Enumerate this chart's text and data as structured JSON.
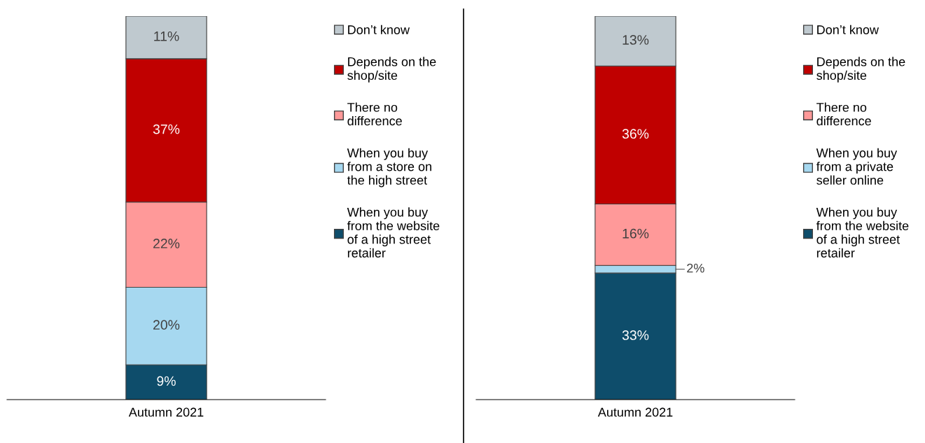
{
  "chart_data": [
    {
      "type": "bar",
      "stacked": true,
      "categories": [
        "Autumn 2021"
      ],
      "legend": "right",
      "series": [
        {
          "name": "When you buy from the website of a high street retailer",
          "color": "#0e4d6b",
          "values": [
            9
          ],
          "value_labels": [
            "9%"
          ]
        },
        {
          "name": "When you buy from a store on the high street",
          "color": "#a6d8f0",
          "values": [
            20
          ],
          "value_labels": [
            "20%"
          ]
        },
        {
          "name": "There no difference",
          "color": "#ff9999",
          "values": [
            22
          ],
          "value_labels": [
            "22%"
          ]
        },
        {
          "name": "Depends on the shop/site",
          "color": "#c00000",
          "values": [
            37
          ],
          "value_labels": [
            "37%"
          ]
        },
        {
          "name": "Don’t know",
          "color": "#bfc9cf",
          "values": [
            11
          ],
          "value_labels": [
            "11%"
          ]
        }
      ]
    },
    {
      "type": "bar",
      "stacked": true,
      "categories": [
        "Autumn 2021"
      ],
      "legend": "right",
      "series": [
        {
          "name": "When you buy from the website of a high street retailer",
          "color": "#0e4d6b",
          "values": [
            33
          ],
          "value_labels": [
            "33%"
          ]
        },
        {
          "name": "When you buy from a private seller online",
          "color": "#a6d8f0",
          "values": [
            2
          ],
          "value_labels": [
            "2%"
          ]
        },
        {
          "name": "There no difference",
          "color": "#ff9999",
          "values": [
            16
          ],
          "value_labels": [
            "16%"
          ]
        },
        {
          "name": "Depends on the shop/site",
          "color": "#c00000",
          "values": [
            36
          ],
          "value_labels": [
            "36%"
          ]
        },
        {
          "name": "Don’t know",
          "color": "#bfc9cf",
          "values": [
            13
          ],
          "value_labels": [
            "13%"
          ]
        }
      ]
    }
  ]
}
